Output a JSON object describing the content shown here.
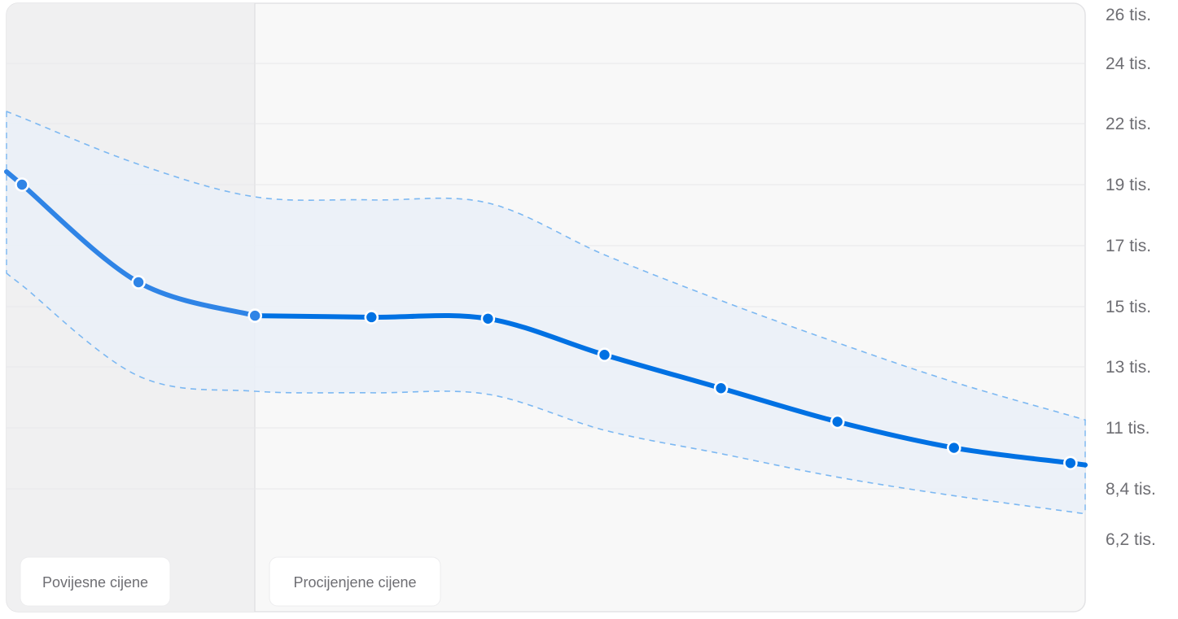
{
  "colors": {
    "line": "#0071e3",
    "band_fill": "#eaf0f8",
    "band_edge": "#7cb8f2",
    "panel_bg": "#f8f8f8",
    "history_bg": "#f0f0f1",
    "grid": "#e8e8ea",
    "border": "#e3e3e5"
  },
  "legend": {
    "historical": "Povijesne cijene",
    "estimated": "Procijenjene cijene"
  },
  "chart_data": {
    "type": "line",
    "title": "",
    "xlabel": "",
    "ylabel": "",
    "y_axis_position": "right",
    "grid": true,
    "y_ticks": [
      {
        "value": 26000,
        "label": "26 tis."
      },
      {
        "value": 24000,
        "label": "24 tis."
      },
      {
        "value": 22000,
        "label": "22 tis."
      },
      {
        "value": 19000,
        "label": "19 tis."
      },
      {
        "value": 17000,
        "label": "17 tis."
      },
      {
        "value": 15000,
        "label": "15 tis."
      },
      {
        "value": 13000,
        "label": "13 tis."
      },
      {
        "value": 11000,
        "label": "11 tis."
      },
      {
        "value": 8400,
        "label": "8,4 tis."
      },
      {
        "value": 6200,
        "label": "6,2 tis."
      }
    ],
    "historical_count": 3,
    "series": [
      {
        "values": [
          19000,
          15800,
          14700,
          14650,
          14600,
          13400,
          12300,
          11200,
          10150,
          9500
        ],
        "upper": [
          22200,
          20000,
          18600,
          18500,
          18400,
          16700,
          15200,
          13800,
          12500,
          11400
        ],
        "lower": [
          15700,
          12700,
          12200,
          12150,
          12100,
          10900,
          9900,
          8900,
          8100,
          7400
        ]
      }
    ]
  }
}
